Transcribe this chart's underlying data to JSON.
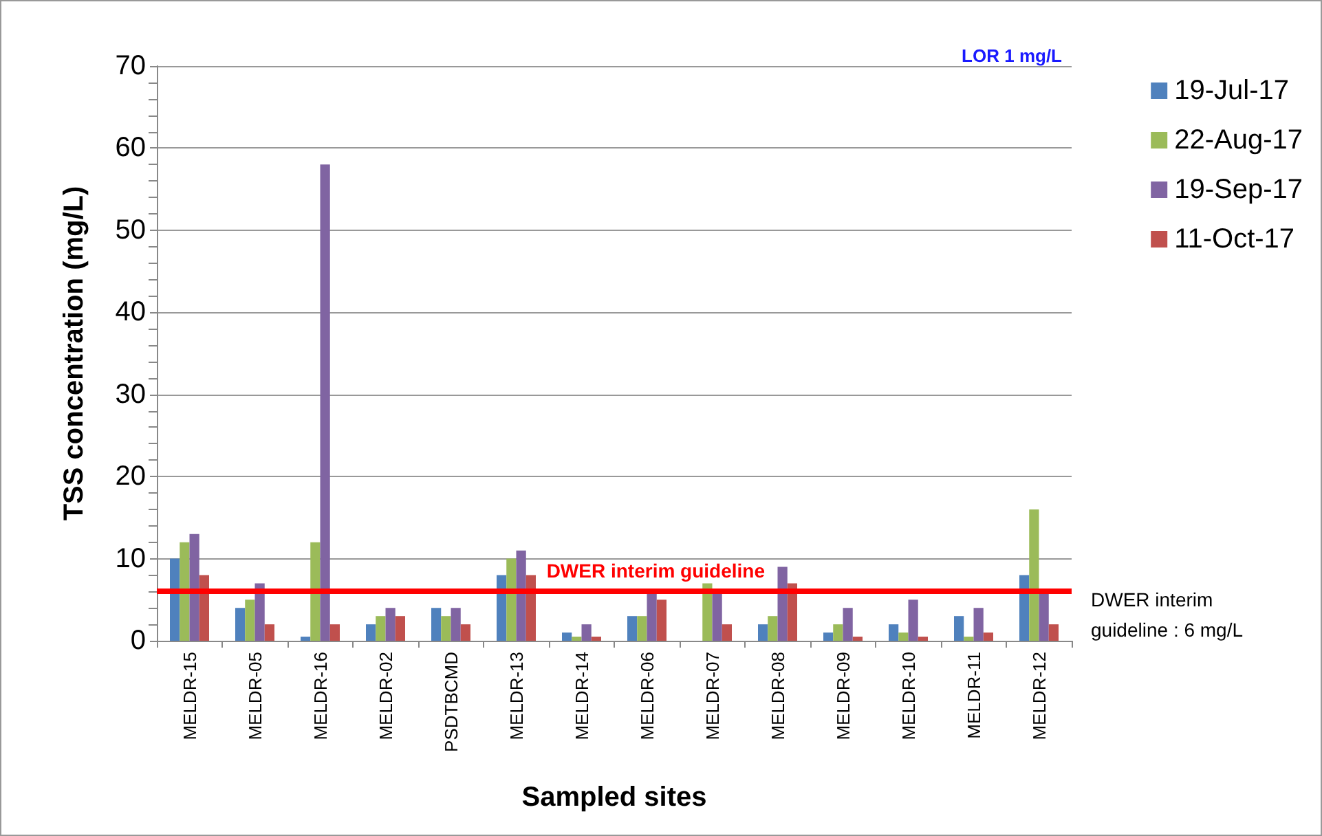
{
  "chart_data": {
    "type": "bar",
    "xlabel": "Sampled sites",
    "ylabel": "TSS concentration (mg/L)",
    "categories": [
      "MELDR-15",
      "MELDR-05",
      "MELDR-16",
      "MELDR-02",
      "PSDTBCMD",
      "MELDR-13",
      "MELDR-14",
      "MELDR-06",
      "MELDR-07",
      "MELDR-08",
      "MELDR-09",
      "MELDR-10",
      "MELDR-11",
      "MELDR-12"
    ],
    "series": [
      {
        "name": "19-Jul-17",
        "color": "#4f81bd",
        "values": [
          10,
          4,
          0.5,
          2,
          4,
          8,
          1,
          3,
          null,
          2,
          1,
          2,
          3,
          8
        ]
      },
      {
        "name": "22-Aug-17",
        "color": "#9bbb59",
        "values": [
          12,
          5,
          12,
          3,
          3,
          10,
          0.5,
          3,
          7,
          3,
          2,
          1,
          0.5,
          16
        ]
      },
      {
        "name": "19-Sep-17",
        "color": "#8064a2",
        "values": [
          13,
          7,
          58,
          4,
          4,
          11,
          2,
          6,
          6,
          9,
          4,
          5,
          4,
          6
        ]
      },
      {
        "name": "11-Oct-17",
        "color": "#c0504d",
        "values": [
          8,
          2,
          2,
          3,
          2,
          8,
          0.5,
          5,
          2,
          7,
          0.5,
          0.5,
          1,
          2
        ]
      }
    ],
    "ylim": [
      0,
      70
    ],
    "yticks": [
      0,
      10,
      20,
      30,
      40,
      50,
      60,
      70
    ],
    "grid": "y",
    "legend": "right",
    "ref_lines": [
      {
        "axis": "y",
        "value": 6,
        "label": "DWER interim guideline",
        "color": "#ff0000"
      }
    ],
    "annotations": [
      "LOR 1 mg/L",
      "DWER interim guideline : 6 mg/L"
    ]
  }
}
